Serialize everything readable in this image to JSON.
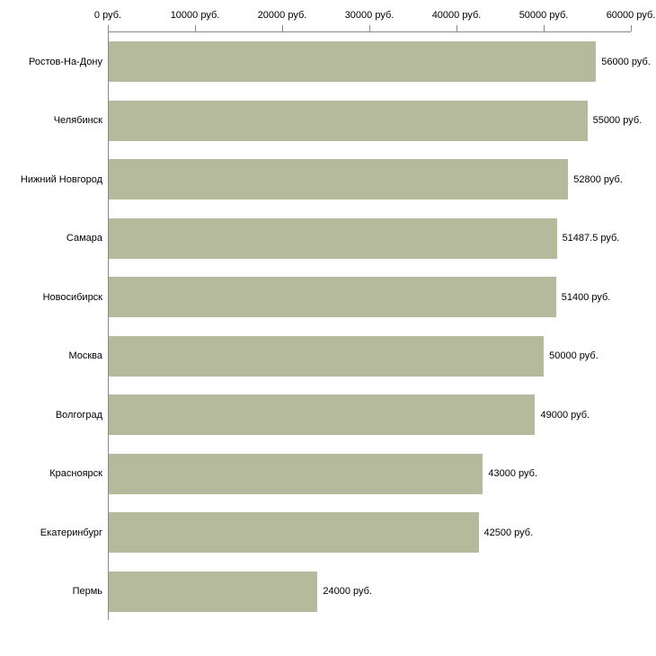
{
  "chart_data": {
    "type": "bar",
    "orientation": "horizontal",
    "title": "",
    "xlabel": "",
    "ylabel": "",
    "xlim": [
      0,
      60000
    ],
    "grid": false,
    "legend": false,
    "bar_color": "#b4ba9b",
    "axis_color": "#8a8a8a",
    "categories": [
      "Ростов-На-Дону",
      "Челябинск",
      "Нижний Новгород",
      "Самара",
      "Новосибирск",
      "Москва",
      "Волгоград",
      "Красноярск",
      "Екатеринбург",
      "Пермь"
    ],
    "values": [
      56000,
      55000,
      52800,
      51487.5,
      51400,
      50000,
      49000,
      43000,
      42500,
      24000
    ],
    "value_labels": [
      "56000 руб.",
      "55000 руб.",
      "52800 руб.",
      "51487.5 руб.",
      "51400 руб.",
      "50000 руб.",
      "49000 руб.",
      "43000 руб.",
      "42500 руб.",
      "24000 руб."
    ],
    "x_ticks": [
      {
        "value": 0,
        "label": "0 руб."
      },
      {
        "value": 10000,
        "label": "10000 руб."
      },
      {
        "value": 20000,
        "label": "20000 руб."
      },
      {
        "value": 30000,
        "label": "30000 руб."
      },
      {
        "value": 40000,
        "label": "40000 руб."
      },
      {
        "value": 50000,
        "label": "50000 руб."
      },
      {
        "value": 60000,
        "label": "60000 руб."
      }
    ]
  }
}
